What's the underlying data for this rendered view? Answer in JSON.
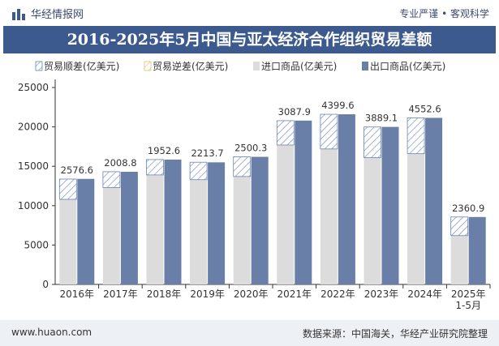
{
  "header": {
    "brand": "华经情报网",
    "tags": "专业严谨 • 客观科学"
  },
  "title": "2016-2025年5月中国与亚太经济合作组织贸易差额",
  "footer": {
    "url": "www.huaon.com",
    "source": "数据来源：中国海关，华经产业研究院整理"
  },
  "watermark": "华经产业研究院",
  "colors": {
    "title_bg": "#3d5a8e",
    "surplus_stroke": "#6b83b3",
    "import": "#dcdcdc",
    "export": "#6a7fa8"
  },
  "chart_data": {
    "type": "bar",
    "legend_position": "top",
    "categories": [
      "2016年",
      "2017年",
      "2018年",
      "2019年",
      "2020年",
      "2021年",
      "2022年",
      "2023年",
      "2024年",
      "2025年\n1-5月"
    ],
    "series": [
      {
        "name": "贸易顺差(亿美元)",
        "values": [
          2576.6,
          2008.8,
          1952.6,
          2213.7,
          2500.3,
          3087.9,
          4399.6,
          3889.1,
          4552.6,
          2360.9
        ]
      },
      {
        "name": "贸易逆差(亿美元)",
        "values": [
          null,
          null,
          null,
          null,
          null,
          null,
          null,
          null,
          null,
          null
        ]
      },
      {
        "name": "进口商品(亿美元)",
        "values": [
          10800,
          12300,
          13900,
          13300,
          13700,
          17700,
          17200,
          16100,
          16600,
          6200
        ]
      },
      {
        "name": "出口商品(亿美元)",
        "values": [
          13400,
          14300,
          15850,
          15500,
          16200,
          20800,
          21600,
          20000,
          21150,
          8560
        ]
      }
    ],
    "data_labels": [
      "2576.6",
      "2008.8",
      "1952.6",
      "2213.7",
      "2500.3",
      "3087.9",
      "4399.6",
      "3889.1",
      "4552.6",
      "2360.9"
    ],
    "ylim": [
      0,
      25000
    ],
    "yticks": [
      0,
      5000,
      10000,
      15000,
      20000,
      25000
    ],
    "grid": false
  }
}
